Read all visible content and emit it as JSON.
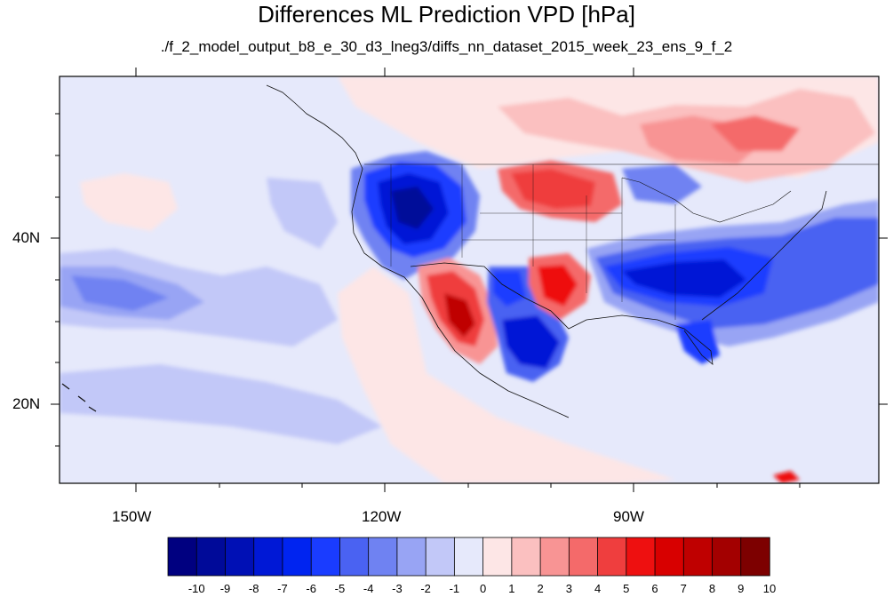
{
  "title": "Differences ML Prediction VPD [hPa]",
  "subtitle": "./f_2_model_output_b8_e_30_d3_lneg3/diffs_nn_dataset_2015_week_23_ens_9_f_2",
  "axes": {
    "lon_labels": [
      "150W",
      "120W",
      "90W"
    ],
    "lat_labels": [
      "40N",
      "20N"
    ]
  },
  "colorbar": {
    "labels": [
      "-10",
      "-9",
      "-8",
      "-7",
      "-6",
      "-5",
      "-4",
      "-3",
      "-2",
      "-1",
      "0",
      "1",
      "2",
      "3",
      "4",
      "5",
      "6",
      "7",
      "8",
      "9",
      "10"
    ],
    "colors": [
      "#000080",
      "#000a99",
      "#0010b5",
      "#0018d6",
      "#0024f0",
      "#1a3cff",
      "#4a62f2",
      "#6f82f2",
      "#98a4f4",
      "#c2c8f8",
      "#e6e9fb",
      "#fde6e6",
      "#fbc0c0",
      "#f89494",
      "#f46a6a",
      "#ef3e3e",
      "#ee1010",
      "#d80000",
      "#bf0000",
      "#a30000",
      "#7d0000"
    ]
  },
  "map": {
    "projection": "cylindrical equidistant",
    "lon_range": [
      -160,
      -62
    ],
    "lat_range": [
      11,
      60
    ],
    "region": "North Pacific and contiguous United States"
  }
}
